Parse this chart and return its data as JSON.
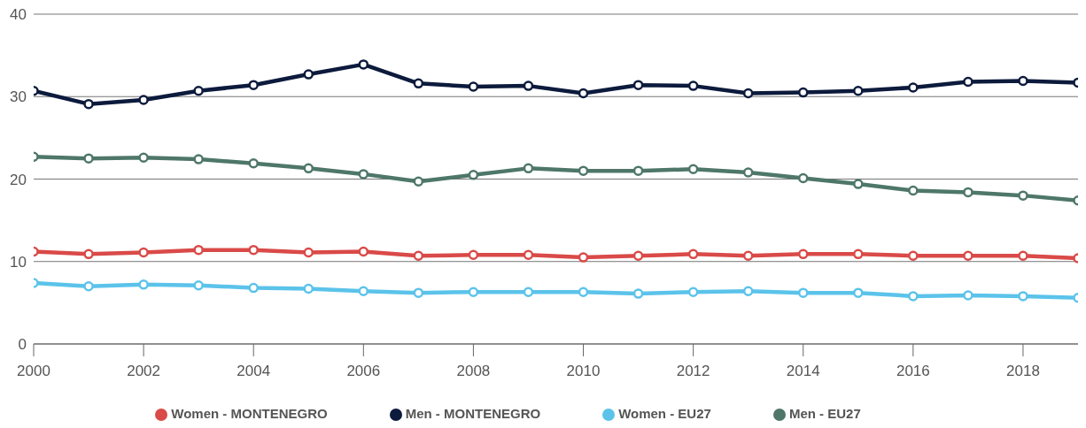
{
  "chart_data": {
    "type": "line",
    "x": [
      2000,
      2001,
      2002,
      2003,
      2004,
      2005,
      2006,
      2007,
      2008,
      2009,
      2010,
      2011,
      2012,
      2013,
      2014,
      2015,
      2016,
      2017,
      2018,
      2019
    ],
    "series": [
      {
        "name": "Women - MONTENEGRO",
        "color": "#d94a48",
        "values": [
          11.2,
          10.9,
          11.1,
          11.4,
          11.4,
          11.1,
          11.2,
          10.7,
          10.8,
          10.8,
          10.5,
          10.7,
          10.9,
          10.7,
          10.9,
          10.9,
          10.7,
          10.7,
          10.7,
          10.4
        ]
      },
      {
        "name": "Men - MONTENEGRO",
        "color": "#0c1a3c",
        "values": [
          30.7,
          29.1,
          29.6,
          30.7,
          31.4,
          32.7,
          33.9,
          31.6,
          31.2,
          31.3,
          30.4,
          31.4,
          31.3,
          30.4,
          30.5,
          30.7,
          31.1,
          31.8,
          31.9,
          31.7
        ]
      },
      {
        "name": "Women - EU27",
        "color": "#5bc3ea",
        "values": [
          7.4,
          7.0,
          7.2,
          7.1,
          6.8,
          6.7,
          6.4,
          6.2,
          6.3,
          6.3,
          6.3,
          6.1,
          6.3,
          6.4,
          6.2,
          6.2,
          5.8,
          5.9,
          5.8,
          5.6
        ]
      },
      {
        "name": "Men - EU27",
        "color": "#4e7769",
        "values": [
          22.7,
          22.5,
          22.6,
          22.4,
          21.9,
          21.3,
          20.6,
          19.7,
          20.5,
          21.3,
          21.0,
          21.0,
          21.2,
          20.8,
          20.1,
          19.4,
          18.6,
          18.4,
          18.0,
          17.4
        ]
      }
    ],
    "xlim": [
      2000,
      2019
    ],
    "xticks": [
      2000,
      2002,
      2004,
      2006,
      2008,
      2010,
      2012,
      2014,
      2016,
      2018
    ],
    "ylim": [
      0,
      40
    ],
    "yticks": [
      0,
      10,
      20,
      30,
      40
    ],
    "grid": "y",
    "legend": "bottom",
    "marker": "circle",
    "line_style": "solid"
  }
}
